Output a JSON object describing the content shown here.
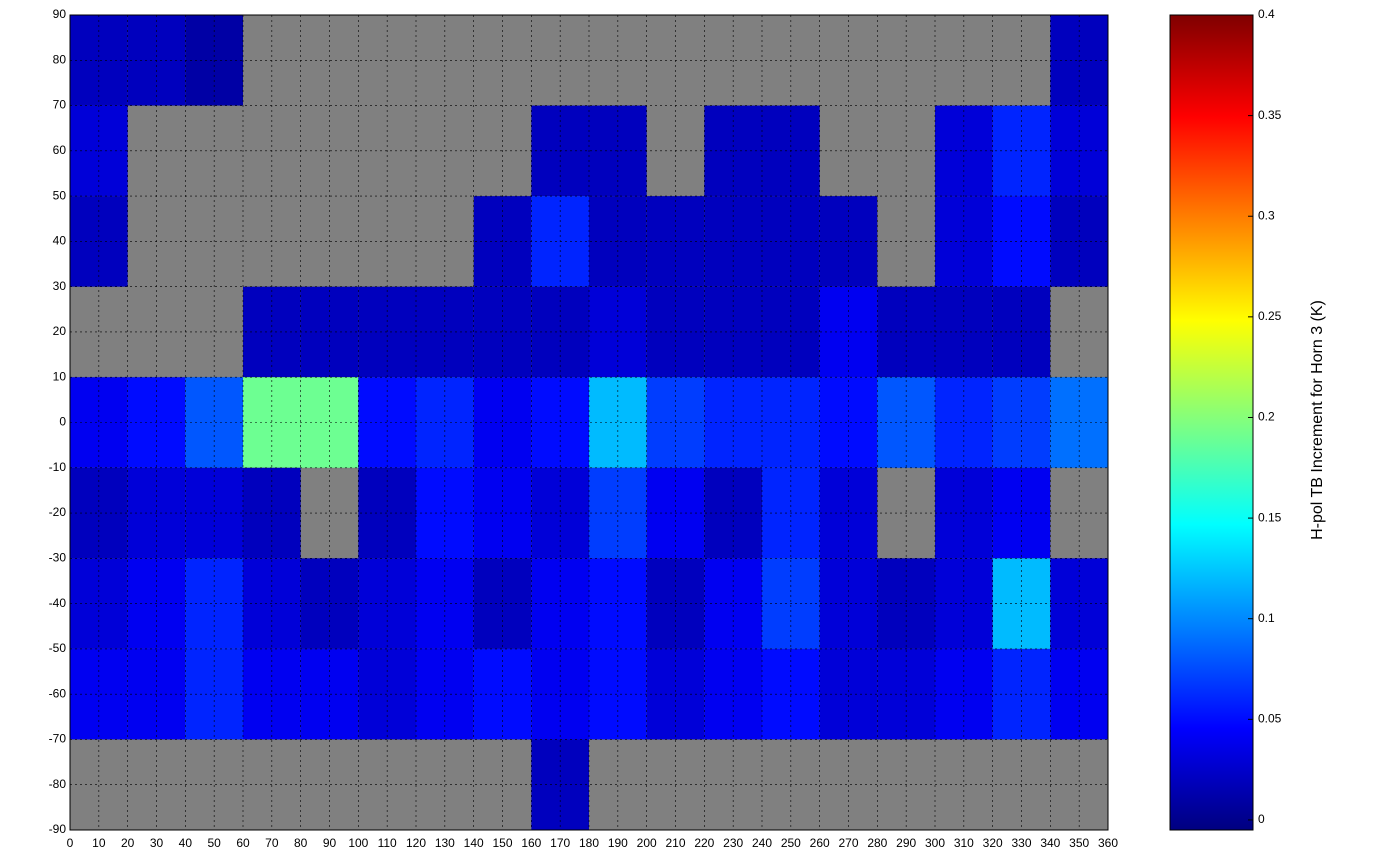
{
  "chart_data": {
    "type": "heatmap",
    "colorbar_label": "H-pol TB Increment for Horn 3 (K)",
    "colormap": "jet",
    "missing_color": "#808080",
    "grid": true,
    "xlim": [
      0,
      360
    ],
    "ylim": [
      -90,
      90
    ],
    "xticks": [
      0,
      10,
      20,
      30,
      40,
      50,
      60,
      70,
      80,
      90,
      100,
      110,
      120,
      130,
      140,
      150,
      160,
      170,
      180,
      190,
      200,
      210,
      220,
      230,
      240,
      250,
      260,
      270,
      280,
      290,
      300,
      310,
      320,
      330,
      340,
      350,
      360
    ],
    "yticks": [
      -90,
      -80,
      -70,
      -60,
      -50,
      -40,
      -30,
      -20,
      -10,
      0,
      10,
      20,
      30,
      40,
      50,
      60,
      70,
      80,
      90
    ],
    "clim": [
      -0.005,
      0.4
    ],
    "cticks": [
      0,
      0.05,
      0.1,
      0.15,
      0.2,
      0.25,
      0.3,
      0.35,
      0.4
    ],
    "xbins": [
      0,
      20,
      40,
      60,
      80,
      100,
      120,
      140,
      160,
      180,
      200,
      220,
      240,
      260,
      280,
      300,
      320,
      340,
      360
    ],
    "ybins": [
      90,
      70,
      50,
      30,
      10,
      -10,
      -30,
      -50,
      -70,
      -90
    ],
    "z": [
      [
        0.02,
        0.02,
        0.01,
        null,
        null,
        null,
        null,
        null,
        null,
        null,
        null,
        null,
        null,
        null,
        null,
        null,
        null,
        0.02
      ],
      [
        0.03,
        null,
        null,
        null,
        null,
        null,
        null,
        null,
        0.02,
        0.02,
        null,
        0.02,
        0.02,
        null,
        null,
        0.03,
        0.06,
        0.03
      ],
      [
        0.02,
        null,
        null,
        null,
        null,
        null,
        null,
        0.02,
        0.06,
        0.02,
        0.02,
        0.02,
        0.02,
        0.02,
        null,
        0.03,
        0.05,
        0.02
      ],
      [
        null,
        null,
        null,
        0.02,
        0.02,
        0.02,
        0.02,
        0.02,
        0.02,
        0.03,
        0.02,
        0.02,
        0.02,
        0.04,
        0.02,
        0.02,
        0.02,
        null
      ],
      [
        0.04,
        0.05,
        0.08,
        0.19,
        0.19,
        0.05,
        0.06,
        0.04,
        0.05,
        0.12,
        0.07,
        0.06,
        0.06,
        0.05,
        0.08,
        0.06,
        0.07,
        0.09
      ],
      [
        0.02,
        0.03,
        0.03,
        0.02,
        null,
        0.02,
        0.05,
        0.04,
        0.03,
        0.07,
        0.04,
        0.02,
        0.06,
        0.03,
        null,
        0.03,
        0.04,
        null
      ],
      [
        0.03,
        0.04,
        0.06,
        0.03,
        0.02,
        0.03,
        0.04,
        0.02,
        0.04,
        0.05,
        0.02,
        0.04,
        0.07,
        0.03,
        0.02,
        0.03,
        0.12,
        0.03
      ],
      [
        0.04,
        0.04,
        0.06,
        0.04,
        0.04,
        0.03,
        0.04,
        0.05,
        0.04,
        0.05,
        0.03,
        0.04,
        0.05,
        0.03,
        0.03,
        0.04,
        0.06,
        0.04
      ],
      [
        null,
        null,
        null,
        null,
        null,
        null,
        null,
        null,
        0.02,
        null,
        null,
        null,
        null,
        null,
        null,
        null,
        null,
        null
      ]
    ]
  }
}
